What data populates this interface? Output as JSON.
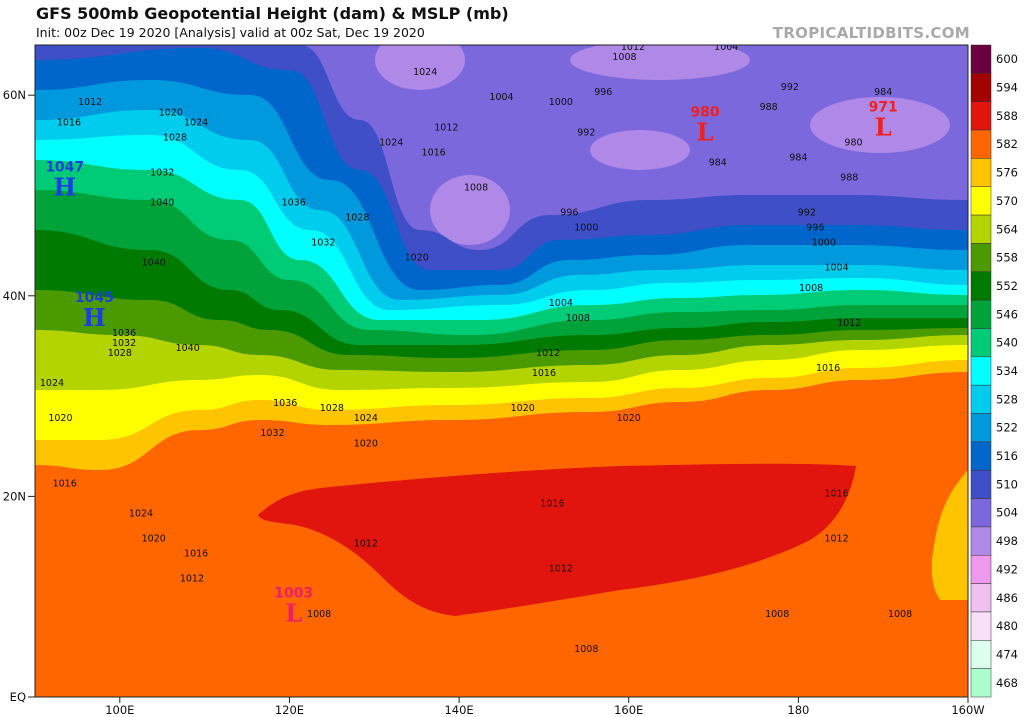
{
  "header": {
    "title": "GFS 500mb Geopotential Height (dam) & MSLP (mb)",
    "subtitle": "Init: 00z Dec 19 2020   [Analysis]   valid at 00z Sat, Dec 19 2020",
    "watermark": "TROPICALTIDBITS.COM"
  },
  "map": {
    "lon_range": [
      90,
      200
    ],
    "lat_range": [
      0,
      65
    ],
    "lat_labels": [
      {
        "lat": 60,
        "label": "60N"
      },
      {
        "lat": 40,
        "label": "40N"
      },
      {
        "lat": 20,
        "label": "20N"
      },
      {
        "lat": 0,
        "label": "EQ"
      }
    ],
    "lon_labels": [
      {
        "lon": 100,
        "label": "100E"
      },
      {
        "lon": 120,
        "label": "120E"
      },
      {
        "lon": 140,
        "label": "140E"
      },
      {
        "lon": 160,
        "label": "160E"
      },
      {
        "lon": 180,
        "label": "180"
      },
      {
        "lon": 200,
        "label": "160W"
      }
    ],
    "pressure_centers": [
      {
        "type": "H",
        "value": "1047",
        "lon": 93.5,
        "lat": 51,
        "color": "#1a3fe0"
      },
      {
        "type": "H",
        "value": "1045",
        "lon": 97,
        "lat": 38,
        "color": "#1a3fe0"
      },
      {
        "type": "L",
        "value": "980",
        "lon": 169,
        "lat": 56.5,
        "color": "#ee2020"
      },
      {
        "type": "L",
        "value": "971",
        "lon": 190,
        "lat": 57,
        "color": "#ee2020"
      },
      {
        "type": "L",
        "value": "1003",
        "lon": 120.5,
        "lat": 8.5,
        "color": "#ee2060"
      }
    ],
    "isobar_labels": [
      {
        "v": "1012",
        "lon": 96.5,
        "lat": 59
      },
      {
        "v": "1016",
        "lon": 94,
        "lat": 57
      },
      {
        "v": "1020",
        "lon": 106,
        "lat": 58
      },
      {
        "v": "1024",
        "lon": 109,
        "lat": 57
      },
      {
        "v": "1028",
        "lon": 106.5,
        "lat": 55.5
      },
      {
        "v": "1032",
        "lon": 105,
        "lat": 52
      },
      {
        "v": "1040",
        "lon": 105,
        "lat": 49
      },
      {
        "v": "1036",
        "lon": 120.5,
        "lat": 49
      },
      {
        "v": "1032",
        "lon": 124,
        "lat": 45
      },
      {
        "v": "1028",
        "lon": 128,
        "lat": 47.5
      },
      {
        "v": "1024",
        "lon": 136,
        "lat": 62
      },
      {
        "v": "1024",
        "lon": 132,
        "lat": 55
      },
      {
        "v": "1012",
        "lon": 138.5,
        "lat": 56.5
      },
      {
        "v": "1016",
        "lon": 137,
        "lat": 54
      },
      {
        "v": "1008",
        "lon": 142,
        "lat": 50.5
      },
      {
        "v": "1020",
        "lon": 135,
        "lat": 43.5
      },
      {
        "v": "1004",
        "lon": 145,
        "lat": 59.5
      },
      {
        "v": "1000",
        "lon": 152,
        "lat": 59
      },
      {
        "v": "996",
        "lon": 157,
        "lat": 60
      },
      {
        "v": "992",
        "lon": 155,
        "lat": 56
      },
      {
        "v": "1008",
        "lon": 159.5,
        "lat": 63.5
      },
      {
        "v": "1012",
        "lon": 160.5,
        "lat": 64.5
      },
      {
        "v": "1004",
        "lon": 171.5,
        "lat": 64.5
      },
      {
        "v": "992",
        "lon": 179,
        "lat": 60.5
      },
      {
        "v": "988",
        "lon": 176.5,
        "lat": 58.5
      },
      {
        "v": "984",
        "lon": 170.5,
        "lat": 53
      },
      {
        "v": "984",
        "lon": 190,
        "lat": 60
      },
      {
        "v": "980",
        "lon": 186.5,
        "lat": 55
      },
      {
        "v": "984",
        "lon": 180,
        "lat": 53.5
      },
      {
        "v": "988",
        "lon": 186,
        "lat": 51.5
      },
      {
        "v": "992",
        "lon": 181,
        "lat": 48
      },
      {
        "v": "996",
        "lon": 182,
        "lat": 46.5
      },
      {
        "v": "1000",
        "lon": 183,
        "lat": 45
      },
      {
        "v": "1004",
        "lon": 184.5,
        "lat": 42.5
      },
      {
        "v": "1008",
        "lon": 181.5,
        "lat": 40.5
      },
      {
        "v": "1012",
        "lon": 186,
        "lat": 37
      },
      {
        "v": "1016",
        "lon": 183.5,
        "lat": 32.5
      },
      {
        "v": "996",
        "lon": 153,
        "lat": 48
      },
      {
        "v": "1000",
        "lon": 155,
        "lat": 46.5
      },
      {
        "v": "1004",
        "lon": 152,
        "lat": 39
      },
      {
        "v": "1008",
        "lon": 154,
        "lat": 37.5
      },
      {
        "v": "1012",
        "lon": 150.5,
        "lat": 34
      },
      {
        "v": "1016",
        "lon": 150,
        "lat": 32
      },
      {
        "v": "1020",
        "lon": 147.5,
        "lat": 28.5
      },
      {
        "v": "1020",
        "lon": 160,
        "lat": 27.5
      },
      {
        "v": "1016",
        "lon": 151,
        "lat": 19
      },
      {
        "v": "1016",
        "lon": 184.5,
        "lat": 20
      },
      {
        "v": "1012",
        "lon": 129,
        "lat": 15
      },
      {
        "v": "1012",
        "lon": 152,
        "lat": 12.5
      },
      {
        "v": "1012",
        "lon": 184.5,
        "lat": 15.5
      },
      {
        "v": "1008",
        "lon": 177.5,
        "lat": 8
      },
      {
        "v": "1008",
        "lon": 192,
        "lat": 8
      },
      {
        "v": "1008",
        "lon": 155,
        "lat": 4.5
      },
      {
        "v": "1008",
        "lon": 123.5,
        "lat": 8
      },
      {
        "v": "1024",
        "lon": 102.5,
        "lat": 18
      },
      {
        "v": "1020",
        "lon": 104,
        "lat": 15.5
      },
      {
        "v": "1016",
        "lon": 109,
        "lat": 14
      },
      {
        "v": "1012",
        "lon": 108.5,
        "lat": 11.5
      },
      {
        "v": "1016",
        "lon": 93.5,
        "lat": 21
      },
      {
        "v": "1020",
        "lon": 93,
        "lat": 27.5
      },
      {
        "v": "1024",
        "lon": 92,
        "lat": 31
      },
      {
        "v": "1028",
        "lon": 100,
        "lat": 34
      },
      {
        "v": "1032",
        "lon": 100.5,
        "lat": 35
      },
      {
        "v": "1036",
        "lon": 100.5,
        "lat": 36
      },
      {
        "v": "1040",
        "lon": 108,
        "lat": 34.5
      },
      {
        "v": "1040",
        "lon": 104,
        "lat": 43
      },
      {
        "v": "1036",
        "lon": 119.5,
        "lat": 29
      },
      {
        "v": "1032",
        "lon": 118,
        "lat": 26
      },
      {
        "v": "1028",
        "lon": 125,
        "lat": 28.5
      },
      {
        "v": "1024",
        "lon": 129,
        "lat": 27.5
      },
      {
        "v": "1020",
        "lon": 129,
        "lat": 25
      }
    ]
  },
  "colorbar": {
    "levels": [
      {
        "label": "600",
        "color": "#6b0040"
      },
      {
        "label": "594",
        "color": "#a30000"
      },
      {
        "label": "588",
        "color": "#e2140e"
      },
      {
        "label": "582",
        "color": "#ff6600"
      },
      {
        "label": "576",
        "color": "#ffc400"
      },
      {
        "label": "570",
        "color": "#ffff00"
      },
      {
        "label": "564",
        "color": "#b4d400"
      },
      {
        "label": "558",
        "color": "#4a9a00"
      },
      {
        "label": "552",
        "color": "#007a00"
      },
      {
        "label": "546",
        "color": "#00a23a"
      },
      {
        "label": "540",
        "color": "#00cc78"
      },
      {
        "label": "534",
        "color": "#00ffff"
      },
      {
        "label": "528",
        "color": "#00ccee"
      },
      {
        "label": "522",
        "color": "#0099dd"
      },
      {
        "label": "516",
        "color": "#0066cc"
      },
      {
        "label": "510",
        "color": "#3e4fc8"
      },
      {
        "label": "504",
        "color": "#7b68dd"
      },
      {
        "label": "498",
        "color": "#b088e8"
      },
      {
        "label": "492",
        "color": "#ee99ee"
      },
      {
        "label": "486",
        "color": "#f0c0f0"
      },
      {
        "label": "480",
        "color": "#f8e0f8"
      },
      {
        "label": "474",
        "color": "#ddffee"
      },
      {
        "label": "468",
        "color": "#aaffcc"
      }
    ]
  }
}
